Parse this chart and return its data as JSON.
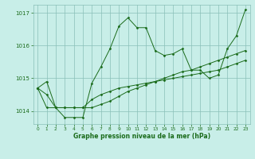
{
  "x": [
    0,
    1,
    2,
    3,
    4,
    5,
    6,
    7,
    8,
    9,
    10,
    11,
    12,
    13,
    14,
    15,
    16,
    17,
    18,
    19,
    20,
    21,
    22,
    23
  ],
  "line1": [
    1014.7,
    1014.9,
    1014.1,
    1013.8,
    1013.8,
    1013.8,
    1014.85,
    1015.35,
    1015.9,
    1016.6,
    1016.85,
    1016.55,
    1016.55,
    1015.85,
    1015.7,
    1015.75,
    1015.9,
    1015.25,
    1015.25,
    1015.0,
    1015.1,
    1015.9,
    1016.3,
    1017.1
  ],
  "line2": [
    1014.7,
    1014.1,
    1014.1,
    1014.1,
    1014.1,
    1014.1,
    1014.35,
    1014.5,
    1014.6,
    1014.7,
    1014.75,
    1014.8,
    1014.85,
    1014.9,
    1014.95,
    1015.0,
    1015.05,
    1015.1,
    1015.15,
    1015.2,
    1015.25,
    1015.35,
    1015.45,
    1015.55
  ],
  "line3": [
    1014.7,
    1014.5,
    1014.1,
    1014.1,
    1014.1,
    1014.1,
    1014.1,
    1014.2,
    1014.3,
    1014.45,
    1014.6,
    1014.7,
    1014.8,
    1014.9,
    1015.0,
    1015.1,
    1015.2,
    1015.25,
    1015.35,
    1015.45,
    1015.55,
    1015.65,
    1015.75,
    1015.85
  ],
  "ylim": [
    1013.6,
    1017.25
  ],
  "yticks": [
    1014,
    1015,
    1016,
    1017
  ],
  "line_color": "#1a6b1a",
  "bg_color": "#c8eee8",
  "grid_color": "#8abfb8",
  "xlabel": "Graphe pression niveau de la mer (hPa)"
}
